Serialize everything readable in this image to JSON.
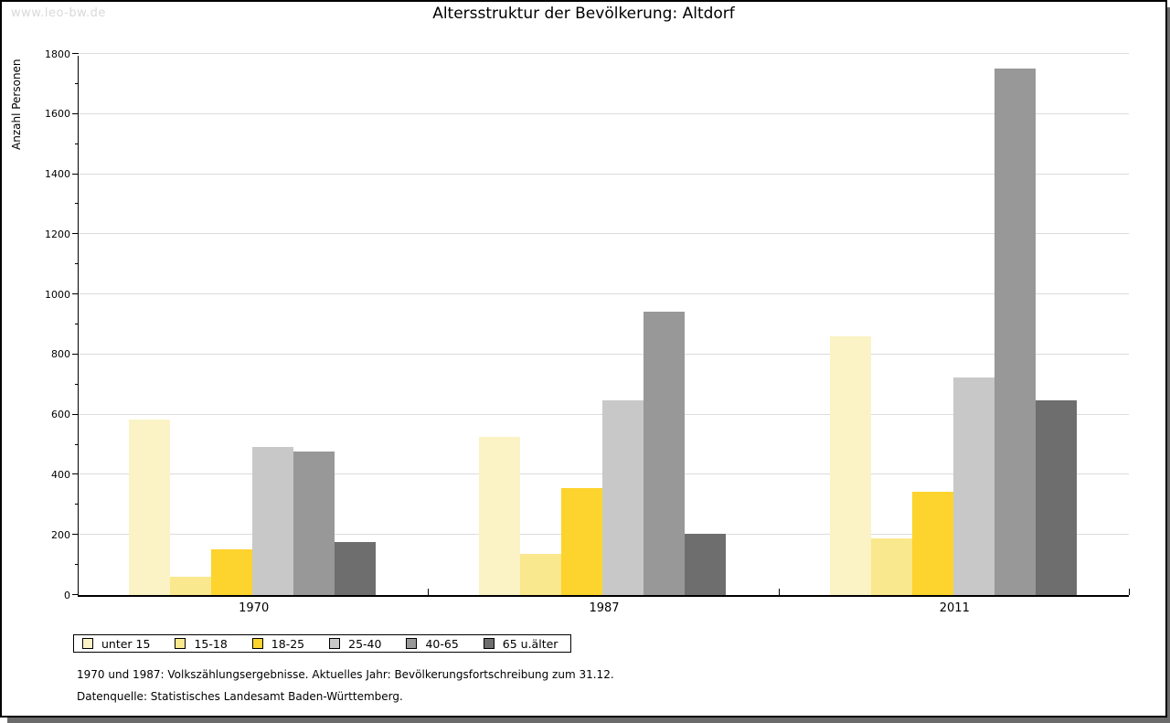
{
  "watermark": "www.leo-bw.de",
  "chart_data": {
    "type": "bar",
    "title": "Altersstruktur der Bevölkerung: Altdorf",
    "ylabel": "Anzahl Personen",
    "categories": [
      "1970",
      "1987",
      "2011"
    ],
    "series": [
      {
        "name": "unter 15",
        "color": "#FBF3C5",
        "values": [
          583,
          525,
          862
        ]
      },
      {
        "name": "15-18",
        "color": "#FAE88E",
        "values": [
          62,
          138,
          190
        ]
      },
      {
        "name": "18-25",
        "color": "#FDD32E",
        "values": [
          152,
          356,
          345
        ]
      },
      {
        "name": "25-40",
        "color": "#C8C8C8",
        "values": [
          494,
          648,
          725
        ]
      },
      {
        "name": "40-65",
        "color": "#989898",
        "values": [
          479,
          942,
          1750
        ]
      },
      {
        "name": "65 u.älter",
        "color": "#6E6E6E",
        "values": [
          175,
          205,
          648
        ]
      }
    ],
    "ylim": [
      0,
      1800
    ],
    "ytick_step": 200,
    "yminor_step": 100,
    "grid": "horizontal",
    "legend_position": "bottom-left"
  },
  "footnotes": [
    "1970 und 1987: Volkszählungsergebnisse. Aktuelles Jahr: Bevölkerungsfortschreibung zum 31.12.",
    "Datenquelle: Statistisches Landesamt Baden-Württemberg."
  ],
  "colors": {
    "grid": "#DCDCDC",
    "axis": "#000000",
    "watermark": "#D9D9D9",
    "window_shadow": "#6B6B6B"
  }
}
